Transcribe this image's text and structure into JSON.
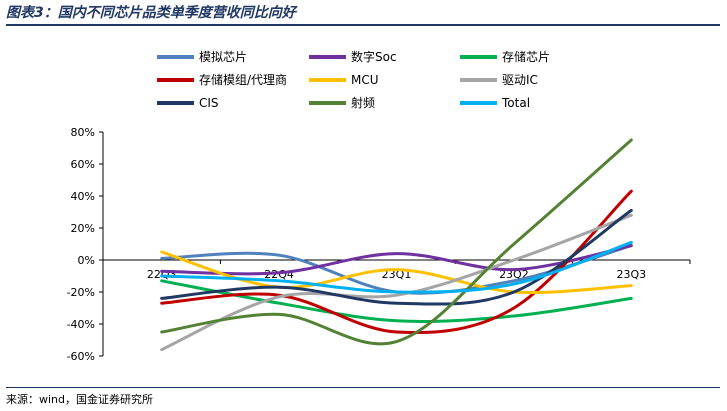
{
  "title": "图表3：国内不同芯片品类单季度营收同比向好",
  "source": "来源：wind，国金证券研究所",
  "chart_data": {
    "type": "line",
    "x": [
      "22Q3",
      "22Q4",
      "23Q1",
      "23Q2",
      "23Q3"
    ],
    "ylim": [
      -60,
      80
    ],
    "yticks": [
      -60,
      -40,
      -20,
      0,
      20,
      40,
      60,
      80
    ],
    "ytick_labels": [
      "-60%",
      "-40%",
      "-20%",
      "0%",
      "20%",
      "40%",
      "60%",
      "80%"
    ],
    "grid": false,
    "legend_position": "top",
    "series": [
      {
        "name": "模拟芯片",
        "color": "#4f81bd",
        "values": [
          1,
          3,
          -20,
          -13,
          9
        ]
      },
      {
        "name": "数字Soc",
        "color": "#7030a0",
        "values": [
          -7,
          -8,
          4,
          -6,
          9
        ]
      },
      {
        "name": "存储芯片",
        "color": "#00b050",
        "values": [
          -13,
          -27,
          -38,
          -35,
          -24
        ]
      },
      {
        "name": "存储模组/代理商",
        "color": "#c00000",
        "values": [
          -27,
          -22,
          -45,
          -30,
          43
        ]
      },
      {
        "name": "MCU",
        "color": "#ffc000",
        "values": [
          5,
          -17,
          -6,
          -20,
          -16
        ]
      },
      {
        "name": "驱动IC",
        "color": "#a5a5a5",
        "values": [
          -56,
          -23,
          -22,
          0,
          28
        ]
      },
      {
        "name": "CIS",
        "color": "#1f3864",
        "values": [
          -24,
          -17,
          -27,
          -20,
          31
        ]
      },
      {
        "name": "射频",
        "color": "#548235",
        "values": [
          -45,
          -34,
          -51,
          10,
          75
        ]
      },
      {
        "name": "Total",
        "color": "#00b0f0",
        "values": [
          -10,
          -13,
          -20,
          -15,
          11
        ]
      }
    ]
  }
}
